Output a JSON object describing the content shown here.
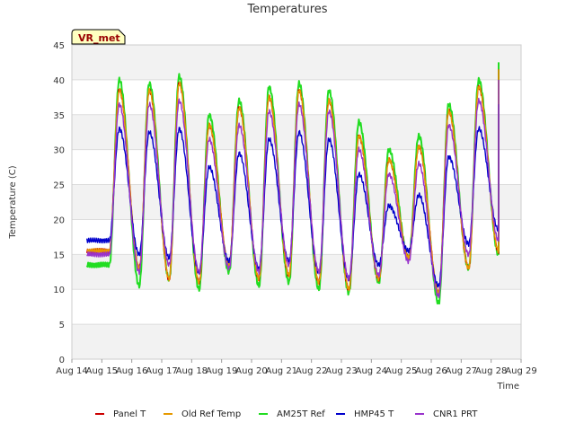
{
  "chart_data": {
    "type": "line",
    "title": "Temperatures",
    "xlabel": "Time",
    "ylabel": "Temperature (C)",
    "badge": "VR_met",
    "xlim": [
      14,
      29
    ],
    "ylim": [
      0,
      45
    ],
    "x_ticks": [
      {
        "value": 14,
        "label": "Aug 14"
      },
      {
        "value": 15,
        "label": "Aug 15"
      },
      {
        "value": 16,
        "label": "Aug 16"
      },
      {
        "value": 17,
        "label": "Aug 17"
      },
      {
        "value": 18,
        "label": "Aug 18"
      },
      {
        "value": 19,
        "label": "Aug 19"
      },
      {
        "value": 20,
        "label": "Aug 20"
      },
      {
        "value": 21,
        "label": "Aug 21"
      },
      {
        "value": 22,
        "label": "Aug 22"
      },
      {
        "value": 23,
        "label": "Aug 23"
      },
      {
        "value": 24,
        "label": "Aug 24"
      },
      {
        "value": 25,
        "label": "Aug 25"
      },
      {
        "value": 26,
        "label": "Aug 26"
      },
      {
        "value": 27,
        "label": "Aug 27"
      },
      {
        "value": 28,
        "label": "Aug 28"
      },
      {
        "value": 29,
        "label": "Aug 29"
      }
    ],
    "y_ticks": [
      0,
      5,
      10,
      15,
      20,
      25,
      30,
      35,
      40,
      45
    ],
    "grid": true,
    "legend_position": "bottom",
    "data_start": 14.5,
    "data_end": 28.25,
    "daily_pattern": "hourly, minimum near 06:00, maximum near 14:00",
    "series": [
      {
        "name": "Panel T",
        "color": "#cc0000",
        "daily_min": [
          15.5,
          13.0,
          11.5,
          11.0,
          13.5,
          11.5,
          12.0,
          11.0,
          10.0,
          11.5,
          14.5,
          9.5,
          13.0,
          15.5,
          18.0
        ],
        "daily_max": [
          38.5,
          38.5,
          39.5,
          33.5,
          36.0,
          37.5,
          38.5,
          37.0,
          32.0,
          28.5,
          30.5,
          35.5,
          39.0,
          41.5
        ]
      },
      {
        "name": "Old Ref Temp",
        "color": "#e69900",
        "daily_min": [
          15.5,
          13.0,
          11.5,
          11.0,
          13.5,
          11.5,
          12.0,
          11.0,
          10.0,
          11.5,
          14.5,
          9.5,
          13.0,
          15.5,
          18.0
        ],
        "daily_max": [
          38.5,
          38.5,
          39.5,
          33.5,
          36.0,
          37.5,
          38.5,
          37.0,
          32.0,
          28.5,
          30.5,
          35.5,
          39.0,
          41.5
        ]
      },
      {
        "name": "AM25T Ref",
        "color": "#22dd22",
        "daily_min": [
          13.5,
          10.5,
          11.5,
          10.0,
          12.5,
          10.5,
          11.0,
          10.0,
          9.5,
          11.0,
          14.5,
          8.0,
          13.0,
          15.0,
          18.0
        ],
        "daily_max": [
          40.0,
          39.5,
          40.5,
          35.0,
          37.0,
          39.0,
          39.5,
          38.5,
          34.0,
          30.0,
          32.0,
          36.5,
          40.0,
          42.5
        ]
      },
      {
        "name": "HMP45 T",
        "color": "#0000cc",
        "daily_min": [
          17.0,
          15.0,
          14.5,
          12.5,
          14.0,
          13.0,
          14.0,
          12.5,
          11.5,
          13.5,
          15.5,
          10.5,
          16.5,
          18.5,
          21.5
        ],
        "daily_max": [
          33.0,
          32.5,
          33.0,
          27.5,
          29.5,
          31.5,
          32.5,
          31.5,
          26.5,
          22.0,
          23.5,
          29.0,
          33.0,
          36.5
        ]
      },
      {
        "name": "CNR1 PRT",
        "color": "#9933cc",
        "daily_min": [
          15.0,
          12.5,
          13.5,
          12.5,
          13.0,
          12.5,
          13.5,
          12.5,
          11.5,
          12.0,
          14.0,
          9.0,
          15.0,
          17.0,
          20.0
        ],
        "daily_max": [
          36.5,
          36.5,
          37.0,
          31.5,
          33.5,
          35.5,
          36.5,
          35.5,
          30.0,
          26.5,
          28.0,
          33.5,
          37.0,
          40.0
        ]
      }
    ]
  }
}
